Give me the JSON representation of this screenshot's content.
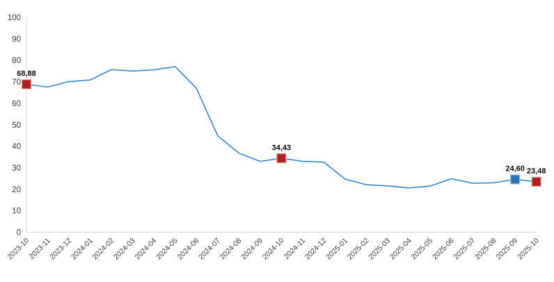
{
  "chart_data": {
    "type": "line",
    "title": "",
    "xlabel": "",
    "ylabel": "",
    "ylim": [
      0,
      100
    ],
    "yticks": [
      0,
      10,
      20,
      30,
      40,
      50,
      60,
      70,
      80,
      90,
      100
    ],
    "grid": false,
    "legend": "none",
    "categories": [
      "2023-10",
      "2023-11",
      "2023-12",
      "2024-01",
      "2024-02",
      "2024-03",
      "2024-04",
      "2024-05",
      "2024-06",
      "2024-07",
      "2024-08",
      "2024-09",
      "2024-10",
      "2024-11",
      "2024-12",
      "2025-01",
      "2025-02",
      "2025-03",
      "2025-04",
      "2025-05",
      "2025-06",
      "2025-07",
      "2025-08",
      "2025-09",
      "2025-10"
    ],
    "values": [
      68.88,
      67.6,
      70.1,
      70.9,
      75.7,
      75.0,
      75.6,
      77.1,
      67.0,
      44.9,
      36.8,
      33.0,
      34.43,
      33.0,
      32.6,
      24.7,
      22.1,
      21.6,
      20.6,
      21.5,
      24.9,
      22.8,
      23.0,
      24.6,
      23.48
    ],
    "marked_points": [
      {
        "index": 0,
        "label": "68,88",
        "fill": "#B01F24",
        "border": "#DC9A97"
      },
      {
        "index": 12,
        "label": "34,43",
        "fill": "#B01F24",
        "border": "#DC9A97"
      },
      {
        "index": 23,
        "label": "24,60",
        "fill": "#2E74B5",
        "border": "#9CC2E5"
      },
      {
        "index": 24,
        "label": "23,48",
        "fill": "#B01F24",
        "border": "#DC9A97"
      }
    ],
    "colors": {
      "series_line": "#3F87C5",
      "axis_line": "#D8D8D8",
      "tick_label": "#404040",
      "data_label": "#0A0A0A",
      "background": "#FFFFFF"
    }
  }
}
